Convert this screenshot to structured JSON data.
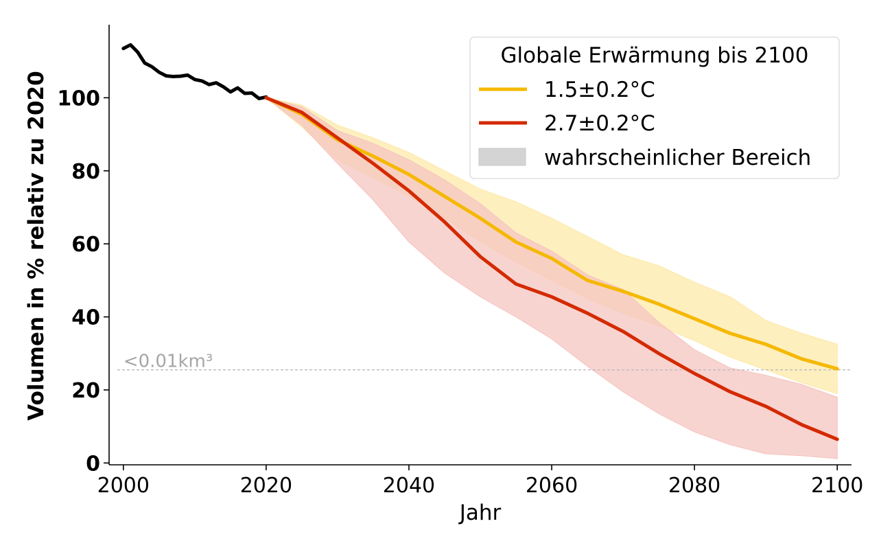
{
  "chart_data": {
    "type": "line",
    "xlabel": "Jahr",
    "ylabel": "Volumen in % relativ zu 2020",
    "xlim": [
      1998,
      2102
    ],
    "ylim": [
      -0.5,
      120
    ],
    "x_ticks": [
      2000,
      2020,
      2040,
      2060,
      2080,
      2100
    ],
    "y_ticks": [
      0,
      20,
      40,
      60,
      80,
      100
    ],
    "threshold": {
      "y": 25.5,
      "label": "<0.01km³",
      "color": "#bbbbbb"
    },
    "legend": {
      "title": "Globale Erwärmung bis 2100",
      "placement": "top-right",
      "range_label": "wahrscheinlicher Bereich"
    },
    "historical": {
      "color": "#000000",
      "x": [
        2000,
        2001,
        2002,
        2003,
        2004,
        2005,
        2006,
        2007,
        2008,
        2009,
        2010,
        2011,
        2012,
        2013,
        2014,
        2015,
        2016,
        2017,
        2018,
        2019,
        2020
      ],
      "y": [
        113.5,
        114.5,
        112.5,
        109.5,
        108.5,
        107,
        106,
        105.8,
        105.9,
        106.2,
        105,
        104.6,
        103.6,
        104.1,
        103,
        101.6,
        102.7,
        101.2,
        101.3,
        99.8,
        100.2
      ]
    },
    "series": [
      {
        "name": "1.5±0.2°C",
        "color": "#f5b800",
        "band_color": "#fde9a9",
        "x": [
          2020,
          2025,
          2030,
          2035,
          2040,
          2045,
          2050,
          2055,
          2060,
          2065,
          2070,
          2075,
          2080,
          2085,
          2090,
          2095,
          2100
        ],
        "y": [
          100,
          95.5,
          88.5,
          84,
          79,
          73,
          67,
          60.5,
          56,
          50,
          47,
          43.5,
          39.5,
          35.5,
          32.5,
          28.5,
          25.8
        ],
        "lower": [
          100,
          92,
          83,
          78,
          73,
          67,
          60.5,
          55,
          50,
          45,
          41,
          37.5,
          33.5,
          29,
          25.5,
          22,
          19
        ],
        "upper": [
          100,
          98,
          92.5,
          89,
          85,
          80,
          75,
          71.5,
          67,
          62,
          57,
          54,
          49.5,
          45.5,
          39,
          35.5,
          32.5
        ]
      },
      {
        "name": "2.7±0.2°C",
        "color": "#d42a00",
        "band_color": "#f5c6c1",
        "x": [
          2020,
          2025,
          2030,
          2035,
          2040,
          2045,
          2050,
          2055,
          2060,
          2065,
          2070,
          2075,
          2080,
          2085,
          2090,
          2095,
          2100
        ],
        "y": [
          100,
          96,
          89,
          82,
          74.5,
          66,
          56.5,
          49,
          45.5,
          41,
          36,
          30,
          24.5,
          19.5,
          15.5,
          10.5,
          6.5
        ],
        "lower": [
          100,
          92.5,
          82,
          72,
          60.5,
          52,
          45.5,
          40,
          34,
          26.5,
          19.5,
          13.5,
          8.5,
          5,
          2.5,
          2,
          1.2
        ],
        "upper": [
          100,
          97.5,
          91,
          87.5,
          83,
          77.5,
          71,
          63,
          58,
          51.5,
          47.5,
          38.5,
          31,
          26,
          24,
          21.5,
          18
        ]
      }
    ]
  }
}
